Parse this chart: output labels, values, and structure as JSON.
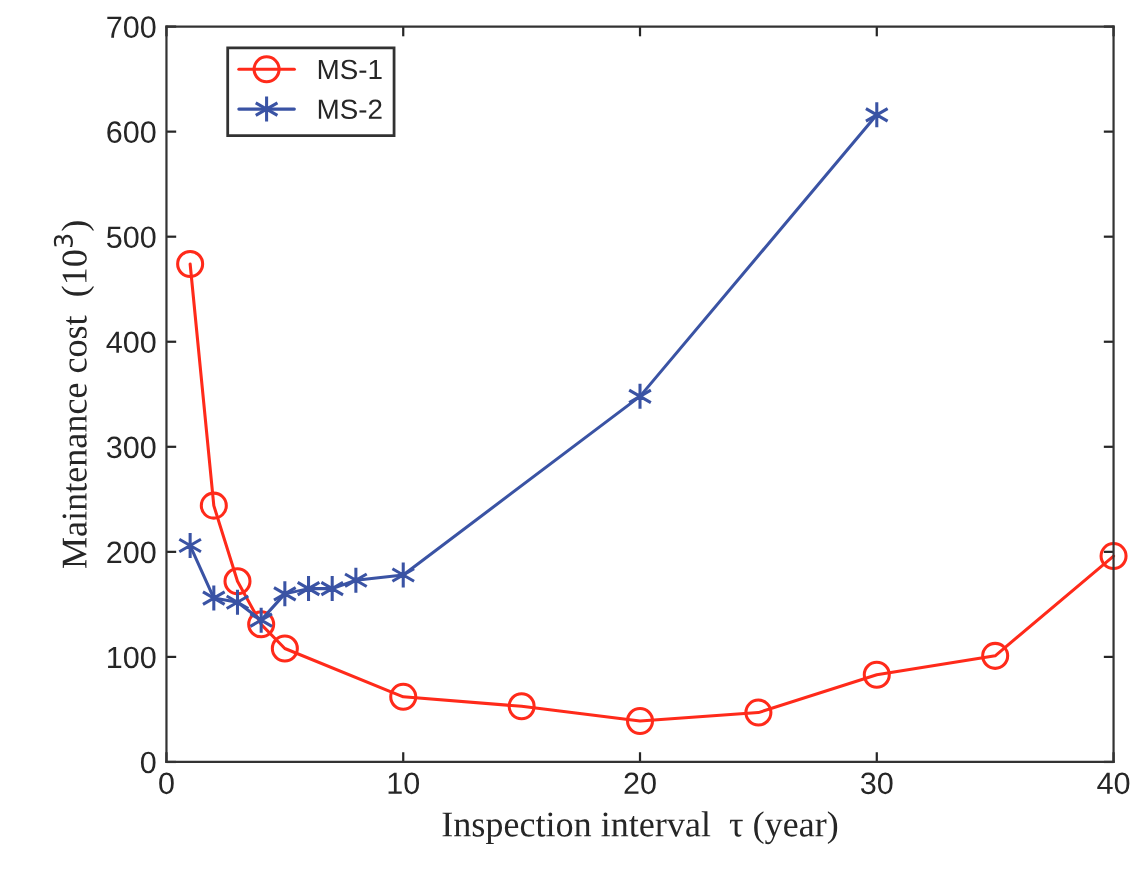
{
  "chart_data": {
    "type": "line",
    "xlabel": "Inspection interval  τ (year)",
    "ylabel": "Maintenance cost  (10$^{3}$)",
    "xlim": [
      0,
      40
    ],
    "xticks": [
      0,
      10,
      20,
      30,
      40
    ],
    "ylim": [
      0,
      700
    ],
    "yticks": [
      0,
      100,
      200,
      300,
      400,
      500,
      600,
      700
    ],
    "grid": false,
    "legend": "top left",
    "line_style": "solid",
    "series": [
      {
        "name": "MS-1",
        "color": "#ff2a1a",
        "marker": "circle",
        "x": [
          1,
          2,
          3,
          4,
          5,
          10,
          15,
          20,
          25,
          30,
          35,
          40
        ],
        "values": [
          474,
          244,
          172,
          131,
          108,
          62,
          53,
          39,
          47,
          83,
          101,
          196
        ]
      },
      {
        "name": "MS-2",
        "color": "#3a53a4",
        "marker": "cross",
        "x": [
          1,
          2,
          3,
          4,
          5,
          6,
          7,
          8,
          10,
          20,
          30
        ],
        "values": [
          206,
          156,
          152,
          135,
          160,
          165,
          165,
          173,
          178,
          348,
          616
        ]
      }
    ]
  }
}
